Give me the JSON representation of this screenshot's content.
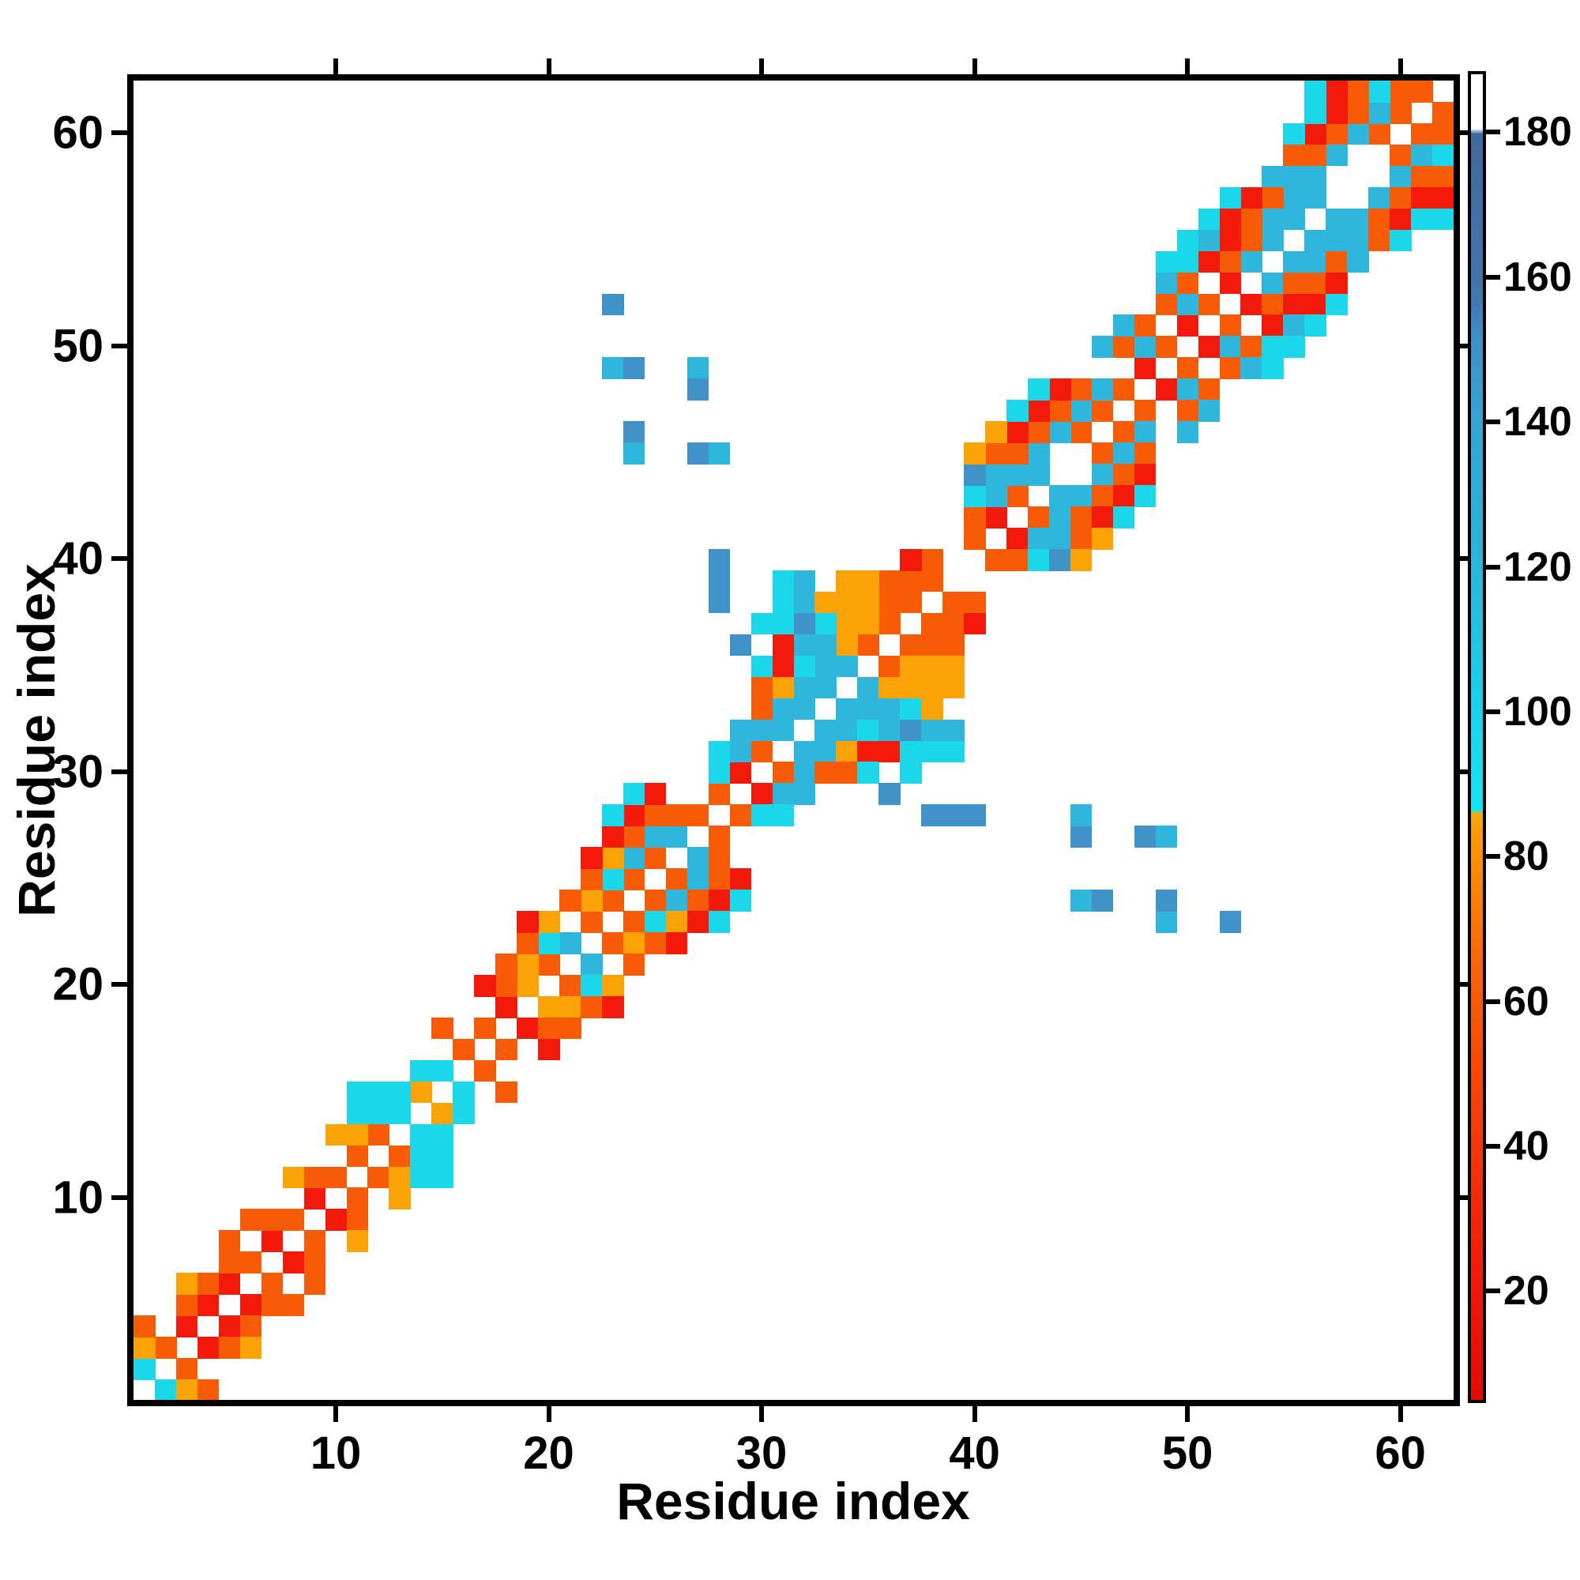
{
  "chart_data": {
    "type": "heatmap",
    "title": "",
    "xlabel": "Residue index",
    "ylabel": "Residue index",
    "x_range": [
      1,
      62
    ],
    "y_range": [
      1,
      62
    ],
    "x_ticks": [
      10,
      20,
      30,
      40,
      50,
      60
    ],
    "y_ticks": [
      10,
      20,
      30,
      40,
      50,
      60
    ],
    "grid": false,
    "symmetric": true,
    "background": "#ffffff",
    "legend_position": "right-colorbar",
    "colorbar": {
      "min": 5,
      "max": 188,
      "ticks": [
        20,
        40,
        60,
        80,
        100,
        120,
        140,
        160,
        180
      ],
      "white_above": 180,
      "stops": [
        [
          "#e30a04",
          0.0
        ],
        [
          "#f21d0b",
          0.109
        ],
        [
          "#f43f09",
          0.219
        ],
        [
          "#f76407",
          0.328
        ],
        [
          "#fa9a04",
          0.426
        ],
        [
          "#f9a904",
          0.442
        ],
        [
          "#16e4f2",
          0.445
        ],
        [
          "#1ad2ea",
          0.519
        ],
        [
          "#29b6dc",
          0.628
        ],
        [
          "#34a4d2",
          0.738
        ],
        [
          "#3d90c4",
          0.803
        ],
        [
          "#4276ae",
          0.831
        ],
        [
          "#41689d",
          0.955
        ],
        [
          "#ffffff",
          0.959
        ],
        [
          "#ffffff",
          1.0
        ]
      ]
    },
    "classes": {
      "R": {
        "color": "#f31a0c",
        "value": 25
      },
      "O": {
        "color": "#f85b06",
        "value": 60
      },
      "A": {
        "color": "#fba207",
        "value": 82
      },
      "C": {
        "color": "#1bd7ea",
        "value": 96
      },
      "T": {
        "color": "#2eb6dc",
        "value": 118
      },
      "B": {
        "color": "#3f93c9",
        "value": 148
      }
    },
    "cells_upper_triangle": [
      [
        1,
        2,
        "C"
      ],
      [
        2,
        3,
        "O"
      ],
      [
        3,
        4,
        "R"
      ],
      [
        4,
        5,
        "R"
      ],
      [
        5,
        6,
        "R"
      ],
      [
        6,
        7,
        "O"
      ],
      [
        7,
        8,
        "R"
      ],
      [
        8,
        9,
        "O"
      ],
      [
        9,
        10,
        "R"
      ],
      [
        10,
        11,
        "O"
      ],
      [
        11,
        12,
        "O"
      ],
      [
        12,
        13,
        "O"
      ],
      [
        13,
        14,
        "C"
      ],
      [
        14,
        15,
        "A"
      ],
      [
        15,
        16,
        "C"
      ],
      [
        16,
        17,
        "O"
      ],
      [
        17,
        18,
        "O"
      ],
      [
        18,
        19,
        "R"
      ],
      [
        19,
        20,
        "A"
      ],
      [
        20,
        21,
        "O"
      ],
      [
        21,
        22,
        "T"
      ],
      [
        22,
        23,
        "O"
      ],
      [
        23,
        24,
        "O"
      ],
      [
        24,
        25,
        "O"
      ],
      [
        25,
        26,
        "O"
      ],
      [
        26,
        27,
        "T"
      ],
      [
        27,
        28,
        "O"
      ],
      [
        28,
        29,
        "O"
      ],
      [
        29,
        30,
        "R"
      ],
      [
        30,
        31,
        "O"
      ],
      [
        31,
        32,
        "T"
      ],
      [
        32,
        33,
        "T"
      ],
      [
        33,
        34,
        "T"
      ],
      [
        34,
        35,
        "T"
      ],
      [
        35,
        36,
        "O"
      ],
      [
        36,
        37,
        "O"
      ],
      [
        37,
        38,
        "O"
      ],
      [
        38,
        39,
        "O"
      ],
      [
        40,
        41,
        "O"
      ],
      [
        41,
        42,
        "R"
      ],
      [
        42,
        43,
        "O"
      ],
      [
        43,
        44,
        "T"
      ],
      [
        45,
        46,
        "O"
      ],
      [
        46,
        47,
        "O"
      ],
      [
        47,
        48,
        "O"
      ],
      [
        48,
        49,
        "R"
      ],
      [
        49,
        50,
        "O"
      ],
      [
        50,
        51,
        "R"
      ],
      [
        51,
        52,
        "O"
      ],
      [
        52,
        53,
        "R"
      ],
      [
        53,
        54,
        "T"
      ],
      [
        54,
        55,
        "T"
      ],
      [
        55,
        56,
        "T"
      ],
      [
        56,
        57,
        "T"
      ],
      [
        59,
        60,
        "O"
      ],
      [
        60,
        61,
        "O"
      ],
      [
        61,
        62,
        "O"
      ],
      [
        1,
        3,
        "A"
      ],
      [
        3,
        5,
        "O"
      ],
      [
        4,
        6,
        "O"
      ],
      [
        5,
        7,
        "O"
      ],
      [
        7,
        9,
        "O"
      ],
      [
        9,
        11,
        "O"
      ],
      [
        11,
        13,
        "A"
      ],
      [
        14,
        16,
        "C"
      ],
      [
        18,
        20,
        "O"
      ],
      [
        19,
        21,
        "A"
      ],
      [
        20,
        22,
        "C"
      ],
      [
        22,
        24,
        "A"
      ],
      [
        23,
        25,
        "C"
      ],
      [
        24,
        26,
        "T"
      ],
      [
        25,
        27,
        "T"
      ],
      [
        26,
        28,
        "O"
      ],
      [
        28,
        30,
        "C"
      ],
      [
        29,
        31,
        "T"
      ],
      [
        30,
        32,
        "T"
      ],
      [
        31,
        33,
        "T"
      ],
      [
        32,
        34,
        "T"
      ],
      [
        33,
        35,
        "T"
      ],
      [
        34,
        36,
        "A"
      ],
      [
        35,
        37,
        "A"
      ],
      [
        36,
        38,
        "O"
      ],
      [
        37,
        39,
        "O"
      ],
      [
        38,
        40,
        "O"
      ],
      [
        40,
        42,
        "O"
      ],
      [
        41,
        43,
        "T"
      ],
      [
        42,
        44,
        "T"
      ],
      [
        43,
        45,
        "T"
      ],
      [
        44,
        46,
        "T"
      ],
      [
        45,
        47,
        "T"
      ],
      [
        46,
        48,
        "T"
      ],
      [
        48,
        50,
        "T"
      ],
      [
        50,
        52,
        "T"
      ],
      [
        52,
        54,
        "O"
      ],
      [
        53,
        55,
        "O"
      ],
      [
        54,
        56,
        "T"
      ],
      [
        55,
        57,
        "T"
      ],
      [
        56,
        58,
        "T"
      ],
      [
        57,
        59,
        "T"
      ],
      [
        58,
        60,
        "T"
      ],
      [
        59,
        61,
        "T"
      ],
      [
        60,
        62,
        "O"
      ],
      [
        1,
        4,
        "O"
      ],
      [
        3,
        6,
        "A"
      ],
      [
        5,
        8,
        "O"
      ],
      [
        6,
        9,
        "O"
      ],
      [
        8,
        11,
        "A"
      ],
      [
        10,
        13,
        "A"
      ],
      [
        15,
        18,
        "O"
      ],
      [
        17,
        20,
        "R"
      ],
      [
        18,
        21,
        "O"
      ],
      [
        19,
        22,
        "O"
      ],
      [
        20,
        23,
        "A"
      ],
      [
        21,
        24,
        "O"
      ],
      [
        22,
        25,
        "O"
      ],
      [
        23,
        26,
        "A"
      ],
      [
        24,
        27,
        "O"
      ],
      [
        25,
        28,
        "O"
      ],
      [
        28,
        31,
        "C"
      ],
      [
        29,
        32,
        "T"
      ],
      [
        30,
        33,
        "O"
      ],
      [
        31,
        34,
        "A"
      ],
      [
        32,
        35,
        "C"
      ],
      [
        33,
        36,
        "T"
      ],
      [
        34,
        37,
        "A"
      ],
      [
        35,
        38,
        "A"
      ],
      [
        36,
        39,
        "O"
      ],
      [
        37,
        40,
        "R"
      ],
      [
        40,
        43,
        "C"
      ],
      [
        41,
        44,
        "T"
      ],
      [
        42,
        45,
        "O"
      ],
      [
        43,
        46,
        "O"
      ],
      [
        44,
        47,
        "O"
      ],
      [
        45,
        48,
        "O"
      ],
      [
        47,
        50,
        "O"
      ],
      [
        48,
        51,
        "O"
      ],
      [
        49,
        52,
        "O"
      ],
      [
        50,
        53,
        "O"
      ],
      [
        51,
        54,
        "R"
      ],
      [
        52,
        55,
        "R"
      ],
      [
        53,
        56,
        "O"
      ],
      [
        54,
        57,
        "O"
      ],
      [
        55,
        58,
        "T"
      ],
      [
        56,
        59,
        "O"
      ],
      [
        57,
        60,
        "O"
      ],
      [
        58,
        61,
        "O"
      ],
      [
        59,
        62,
        "C"
      ],
      [
        19,
        23,
        "R"
      ],
      [
        22,
        26,
        "R"
      ],
      [
        23,
        27,
        "R"
      ],
      [
        24,
        28,
        "R"
      ],
      [
        25,
        29,
        "R"
      ],
      [
        30,
        34,
        "O"
      ],
      [
        31,
        35,
        "R"
      ],
      [
        32,
        36,
        "T"
      ],
      [
        33,
        37,
        "C"
      ],
      [
        34,
        38,
        "A"
      ],
      [
        35,
        39,
        "A"
      ],
      [
        40,
        44,
        "B"
      ],
      [
        41,
        45,
        "O"
      ],
      [
        42,
        46,
        "R"
      ],
      [
        43,
        47,
        "R"
      ],
      [
        44,
        48,
        "R"
      ],
      [
        46,
        50,
        "T"
      ],
      [
        47,
        51,
        "T"
      ],
      [
        49,
        53,
        "T"
      ],
      [
        50,
        54,
        "C"
      ],
      [
        51,
        55,
        "T"
      ],
      [
        52,
        56,
        "R"
      ],
      [
        53,
        57,
        "R"
      ],
      [
        54,
        58,
        "T"
      ],
      [
        55,
        59,
        "O"
      ],
      [
        56,
        60,
        "R"
      ],
      [
        57,
        61,
        "R"
      ],
      [
        58,
        62,
        "O"
      ],
      [
        23,
        28,
        "C"
      ],
      [
        24,
        29,
        "C"
      ],
      [
        30,
        35,
        "C"
      ],
      [
        31,
        36,
        "R"
      ],
      [
        40,
        45,
        "A"
      ],
      [
        41,
        46,
        "A"
      ],
      [
        42,
        47,
        "C"
      ],
      [
        43,
        48,
        "C"
      ],
      [
        49,
        54,
        "C"
      ],
      [
        50,
        55,
        "C"
      ],
      [
        51,
        56,
        "C"
      ],
      [
        52,
        57,
        "C"
      ],
      [
        55,
        60,
        "C"
      ],
      [
        56,
        61,
        "C"
      ],
      [
        57,
        62,
        "R"
      ],
      [
        11,
        14,
        "C"
      ],
      [
        12,
        14,
        "C"
      ],
      [
        11,
        15,
        "C"
      ],
      [
        12,
        15,
        "C"
      ],
      [
        13,
        15,
        "C"
      ],
      [
        30,
        37,
        "C"
      ],
      [
        31,
        37,
        "C"
      ],
      [
        31,
        38,
        "C"
      ],
      [
        31,
        39,
        "C"
      ],
      [
        32,
        37,
        "B"
      ],
      [
        32,
        38,
        "T"
      ],
      [
        32,
        39,
        "T"
      ],
      [
        33,
        38,
        "A"
      ],
      [
        34,
        39,
        "A"
      ],
      [
        56,
        62,
        "C"
      ],
      [
        23,
        52,
        "B"
      ],
      [
        23,
        49,
        "T"
      ],
      [
        24,
        49,
        "B"
      ],
      [
        27,
        49,
        "T"
      ],
      [
        27,
        48,
        "B"
      ],
      [
        24,
        46,
        "B"
      ],
      [
        24,
        45,
        "T"
      ],
      [
        27,
        45,
        "B"
      ],
      [
        28,
        45,
        "T"
      ],
      [
        28,
        38,
        "B"
      ],
      [
        28,
        39,
        "B"
      ],
      [
        28,
        40,
        "B"
      ],
      [
        29,
        36,
        "B"
      ]
    ]
  }
}
